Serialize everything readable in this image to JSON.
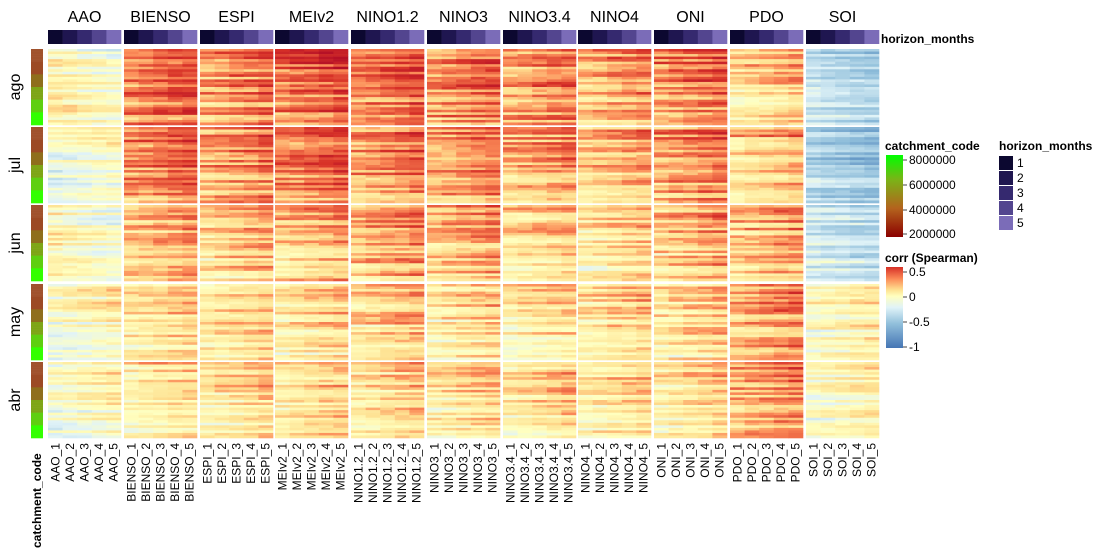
{
  "chart_data": {
    "type": "heatmap",
    "title": "",
    "indices": [
      "AAO",
      "BIENSO",
      "ESPI",
      "MEIv2",
      "NINO1.2",
      "NINO3",
      "NINO3.4",
      "NINO4",
      "ONI",
      "PDO",
      "SOI"
    ],
    "months": [
      "ago",
      "jul",
      "jun",
      "may",
      "abr"
    ],
    "horizons": [
      1,
      2,
      3,
      4,
      5
    ],
    "column_labels": [
      "AAO_1",
      "AAO_2",
      "AAO_3",
      "AAO_4",
      "AAO_5",
      "BIENSO_1",
      "BIENSO_2",
      "BIENSO_3",
      "BIENSO_4",
      "BIENSO_5",
      "ESPI_1",
      "ESPI_2",
      "ESPI_3",
      "ESPI_4",
      "ESPI_5",
      "MEIv2_1",
      "MEIv2_2",
      "MEIv2_3",
      "MEIv2_4",
      "MEIv2_5",
      "NINO1.2_1",
      "NINO1.2_2",
      "NINO1.2_3",
      "NINO1.2_4",
      "NINO1.2_5",
      "NINO3_1",
      "NINO3_2",
      "NINO3_3",
      "NINO3_4",
      "NINO3_5",
      "NINO3.4_1",
      "NINO3.4_2",
      "NINO3.4_3",
      "NINO3.4_4",
      "NINO3.4_5",
      "NINO4_1",
      "NINO4_2",
      "NINO4_3",
      "NINO4_4",
      "NINO4_5",
      "ONI_1",
      "ONI_2",
      "ONI_3",
      "ONI_4",
      "ONI_5",
      "PDO_1",
      "PDO_2",
      "PDO_3",
      "PDO_4",
      "PDO_5",
      "SOI_1",
      "SOI_2",
      "SOI_3",
      "SOI_4",
      "SOI_5"
    ],
    "mean_corr": {
      "AAO": {
        "ago": -0.05,
        "jul": 0.0,
        "jun": -0.05,
        "may": 0.05,
        "abr": 0.05
      },
      "BIENSO": {
        "ago": 0.5,
        "jul": 0.45,
        "jun": 0.3,
        "may": 0.2,
        "abr": 0.2
      },
      "ESPI": {
        "ago": 0.4,
        "jul": 0.4,
        "jun": 0.25,
        "may": 0.2,
        "abr": 0.2
      },
      "MEIv2": {
        "ago": 0.5,
        "jul": 0.45,
        "jun": 0.3,
        "may": 0.2,
        "abr": 0.2
      },
      "NINO1.2": {
        "ago": 0.45,
        "jul": 0.4,
        "jun": 0.35,
        "may": 0.25,
        "abr": 0.2
      },
      "NINO3": {
        "ago": 0.45,
        "jul": 0.4,
        "jun": 0.3,
        "may": 0.2,
        "abr": 0.2
      },
      "NINO3.4": {
        "ago": 0.4,
        "jul": 0.35,
        "jun": 0.25,
        "may": 0.2,
        "abr": 0.2
      },
      "NINO4": {
        "ago": 0.35,
        "jul": 0.3,
        "jun": 0.2,
        "may": 0.2,
        "abr": 0.2
      },
      "ONI": {
        "ago": 0.45,
        "jul": 0.4,
        "jun": 0.3,
        "may": 0.2,
        "abr": 0.2
      },
      "PDO": {
        "ago": 0.25,
        "jul": 0.3,
        "jun": 0.3,
        "may": 0.35,
        "abr": 0.35
      },
      "SOI": {
        "ago": -0.4,
        "jul": -0.5,
        "jun": -0.35,
        "may": 0.1,
        "abr": 0.1
      }
    },
    "row_annotation_label": "catchment_code",
    "catchment_legend": {
      "title": "catchment_code",
      "ticks": [
        "8000000",
        "6000000",
        "4000000",
        "2000000"
      ],
      "colors": [
        "#00ff00",
        "#7ab317",
        "#b4631d",
        "#8b0000"
      ]
    },
    "horizon_legend": {
      "title": "horizon_months",
      "items": [
        "1",
        "2",
        "3",
        "4",
        "5"
      ],
      "colors": [
        "#0c0830",
        "#1f1650",
        "#35296f",
        "#53458f",
        "#7b6cb8"
      ]
    },
    "corr_legend": {
      "title": "corr (Spearman)",
      "ticks": [
        "0.5",
        "0",
        "-0.5",
        "-1"
      ],
      "colors": [
        "#d73027",
        "#fc8d59",
        "#fee090",
        "#ffffbf",
        "#e0f3f8",
        "#91bfdb",
        "#4575b4"
      ]
    },
    "column_annotation_label": "horizon_months"
  }
}
